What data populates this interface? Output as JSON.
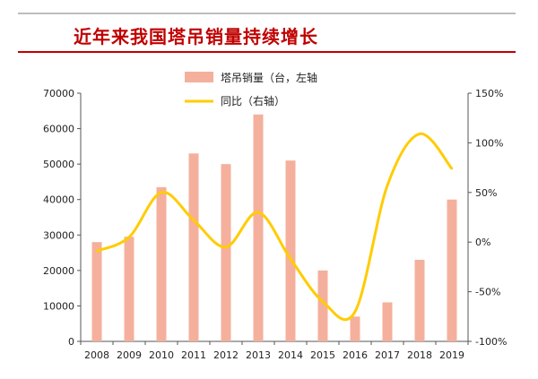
{
  "chart_data": {
    "type": "bar",
    "title": "近年来我国塔吊销量持续增长",
    "categories": [
      "2008",
      "2009",
      "2010",
      "2011",
      "2012",
      "2013",
      "2014",
      "2015",
      "2016",
      "2017",
      "2018",
      "2019"
    ],
    "series": [
      {
        "name": "塔吊销量（台，左轴",
        "type": "bar",
        "axis": "left",
        "values": [
          28000,
          29500,
          43500,
          53000,
          50000,
          64000,
          51000,
          20000,
          7000,
          11000,
          23000,
          40000
        ]
      },
      {
        "name": "同比（右轴）",
        "type": "line",
        "axis": "right",
        "values": [
          -9,
          5,
          50,
          22,
          -5,
          30,
          -17,
          -60,
          -70,
          57,
          109,
          74
        ]
      }
    ],
    "ylim_left": [
      0,
      70000
    ],
    "ylim_right": [
      -100,
      150
    ],
    "yticks_left": [
      "0",
      "10000",
      "20000",
      "30000",
      "40000",
      "50000",
      "60000",
      "70000"
    ],
    "yticks_right": [
      "-100%",
      "-50%",
      "0%",
      "50%",
      "100%",
      "150%"
    ],
    "colors": {
      "bar": "#f4b09c",
      "line": "#ffcc00",
      "title": "#c00000"
    },
    "legend_position": "top-center",
    "grid": false
  }
}
